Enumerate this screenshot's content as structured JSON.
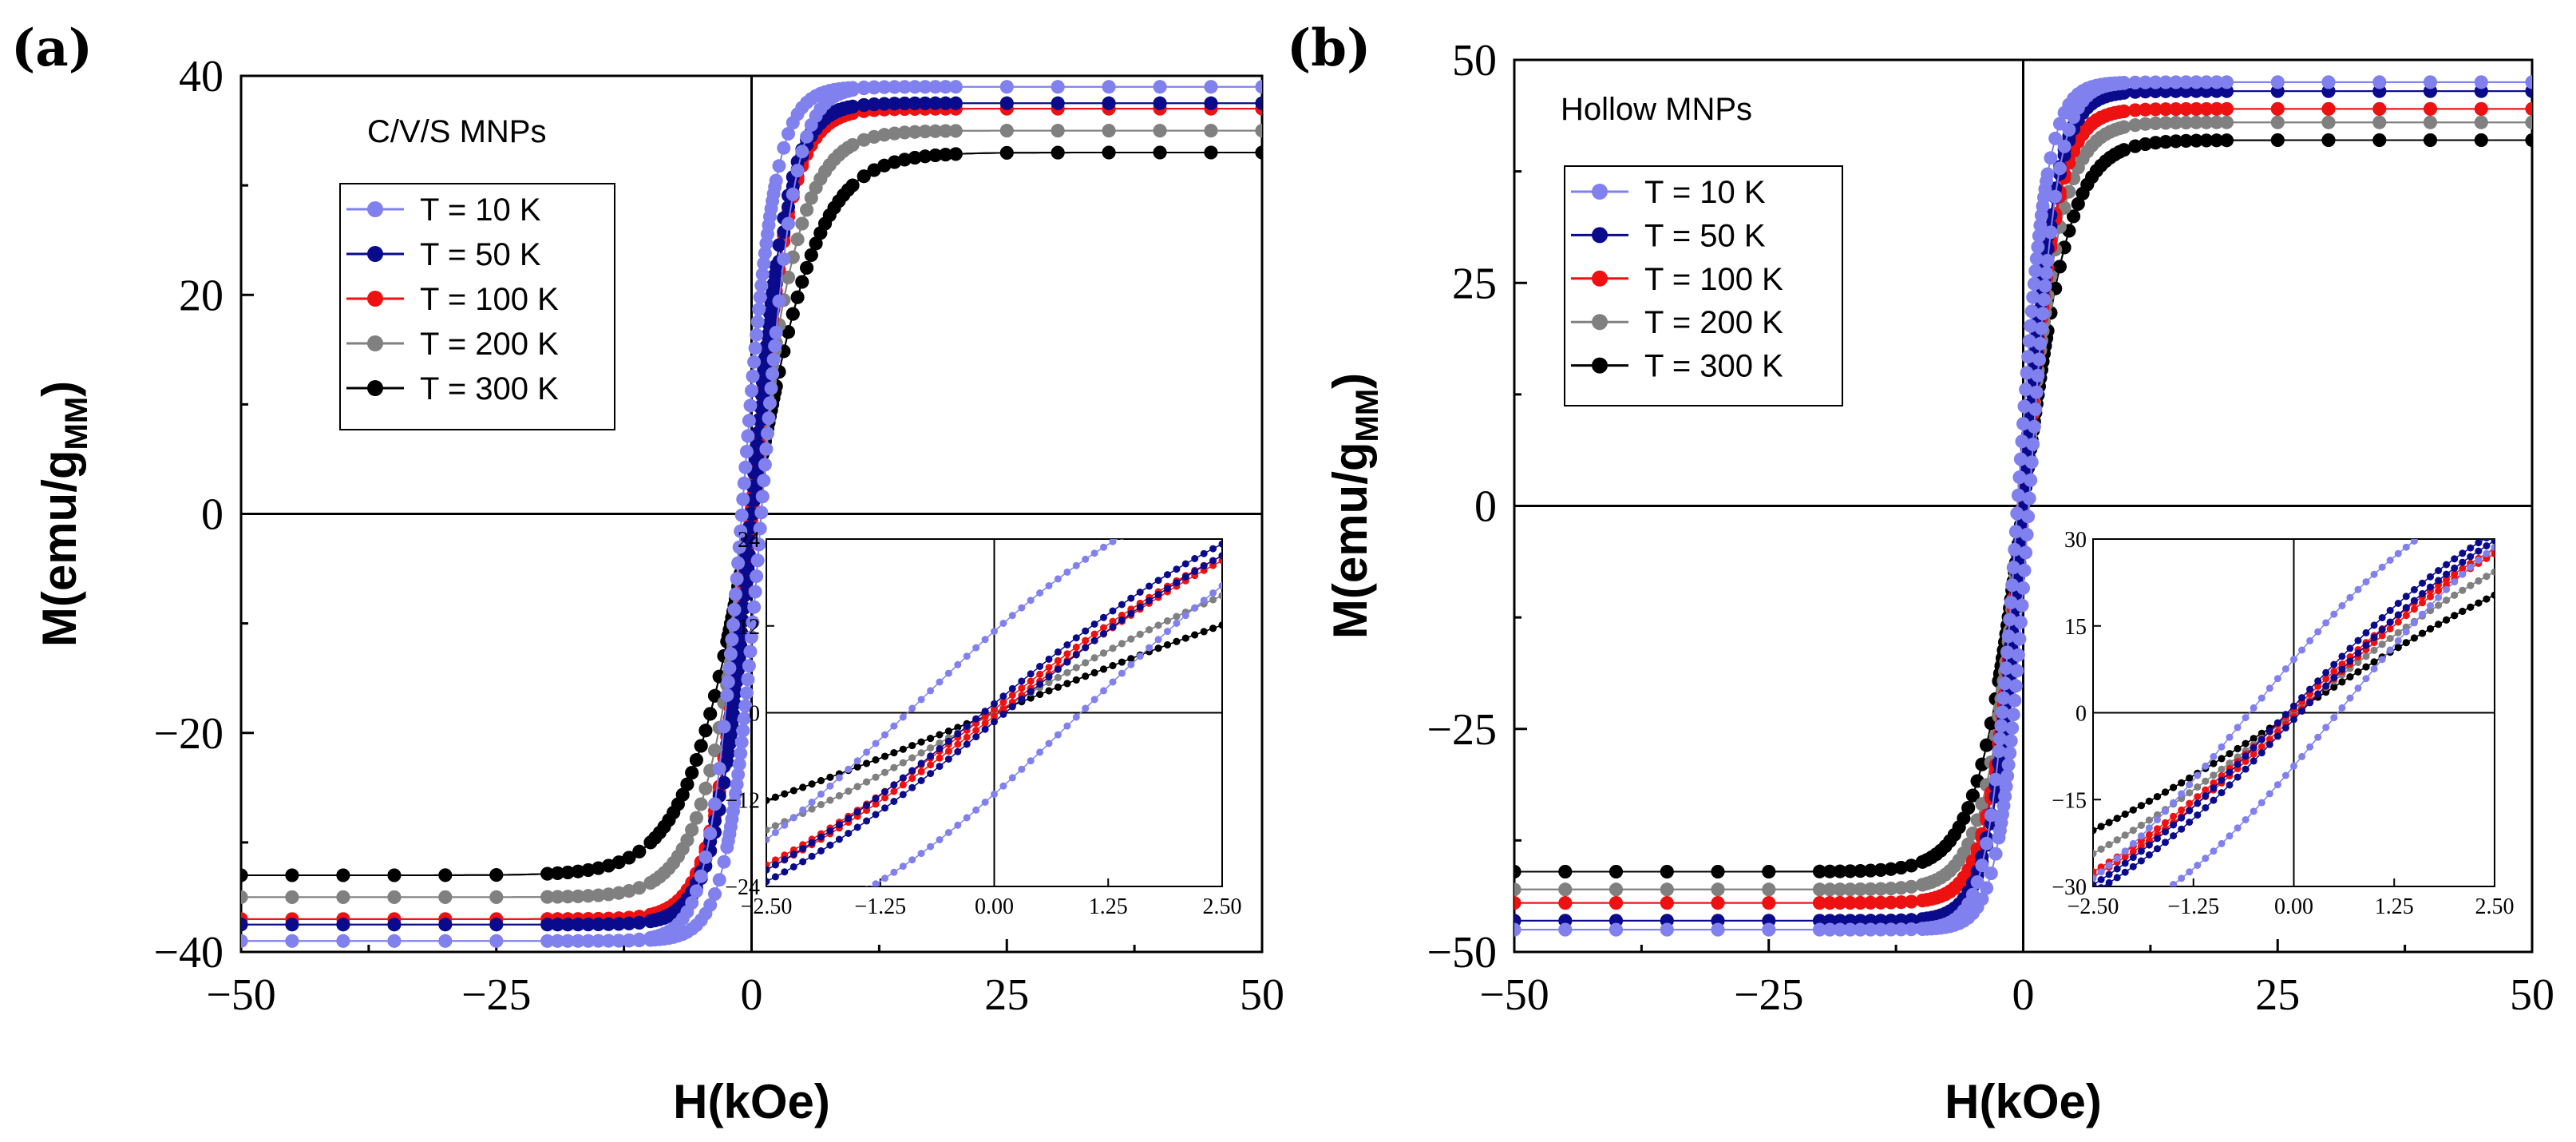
{
  "chart_data": [
    {
      "type": "line",
      "panel_label": "(a)",
      "sample_label": "C/V/S MNPs",
      "xlabel": "H(kOe)",
      "ylabel": {
        "main": "M(emu/g",
        "sub": "MM",
        "close": ")"
      },
      "xlim": [
        -50,
        50
      ],
      "ylim": [
        -40,
        40
      ],
      "xticks": [
        -50,
        -25,
        0,
        25,
        50
      ],
      "yticks": [
        -40,
        -20,
        0,
        20,
        40
      ],
      "legend_placement": "upper-left",
      "series": [
        {
          "name": "T = 10 K",
          "color": "#8080ee",
          "Ms": 39.0,
          "H0": 3.2,
          "Hc": 0.95
        },
        {
          "name": "T = 50 K",
          "color": "#0a0a8c",
          "Ms": 37.5,
          "H0": 3.6,
          "Hc": 0.12
        },
        {
          "name": "T = 100 K",
          "color": "#ee1111",
          "Ms": 37.0,
          "H0": 3.8,
          "Hc": 0.05
        },
        {
          "name": "T = 200 K",
          "color": "#808080",
          "Ms": 35.0,
          "H0": 5.0,
          "Hc": 0.0
        },
        {
          "name": "T = 300 K",
          "color": "#000000",
          "Ms": 33.0,
          "H0": 6.5,
          "Hc": 0.0
        }
      ],
      "inset": {
        "xlim": [
          -2.5,
          2.5
        ],
        "ylim": [
          -24,
          24
        ],
        "xticks": [
          "-2.50",
          "-1.25",
          "0.00",
          "1.25",
          "2.50"
        ],
        "yticks": [
          -24,
          -12,
          0,
          12,
          24
        ]
      }
    },
    {
      "type": "line",
      "panel_label": "(b)",
      "sample_label": "Hollow MNPs",
      "xlabel": "H(kOe)",
      "ylabel": {
        "main": "M(emu/g",
        "sub": "MM",
        "close": ")"
      },
      "xlim": [
        -50,
        50
      ],
      "ylim": [
        -50,
        50
      ],
      "xticks": [
        -50,
        -25,
        0,
        25,
        50
      ],
      "yticks": [
        -50,
        -25,
        0,
        25,
        50
      ],
      "legend_placement": "upper-left",
      "series": [
        {
          "name": "T = 10 K",
          "color": "#8080ee",
          "Ms": 47.5,
          "H0": 2.8,
          "Hc": 0.55
        },
        {
          "name": "T = 50 K",
          "color": "#0a0a8c",
          "Ms": 46.5,
          "H0": 3.2,
          "Hc": 0.08
        },
        {
          "name": "T = 100 K",
          "color": "#ee1111",
          "Ms": 44.5,
          "H0": 3.4,
          "Hc": 0.05
        },
        {
          "name": "T = 200 K",
          "color": "#808080",
          "Ms": 43.0,
          "H0": 3.9,
          "Hc": 0.0
        },
        {
          "name": "T = 300 K",
          "color": "#000000",
          "Ms": 41.0,
          "H0": 4.6,
          "Hc": 0.0
        }
      ],
      "inset": {
        "xlim": [
          -2.5,
          2.5
        ],
        "ylim": [
          -30,
          30
        ],
        "xticks": [
          "-2.50",
          "-1.25",
          "0.00",
          "1.25",
          "2.50"
        ],
        "yticks": [
          -30,
          -15,
          0,
          15,
          30
        ]
      }
    }
  ]
}
